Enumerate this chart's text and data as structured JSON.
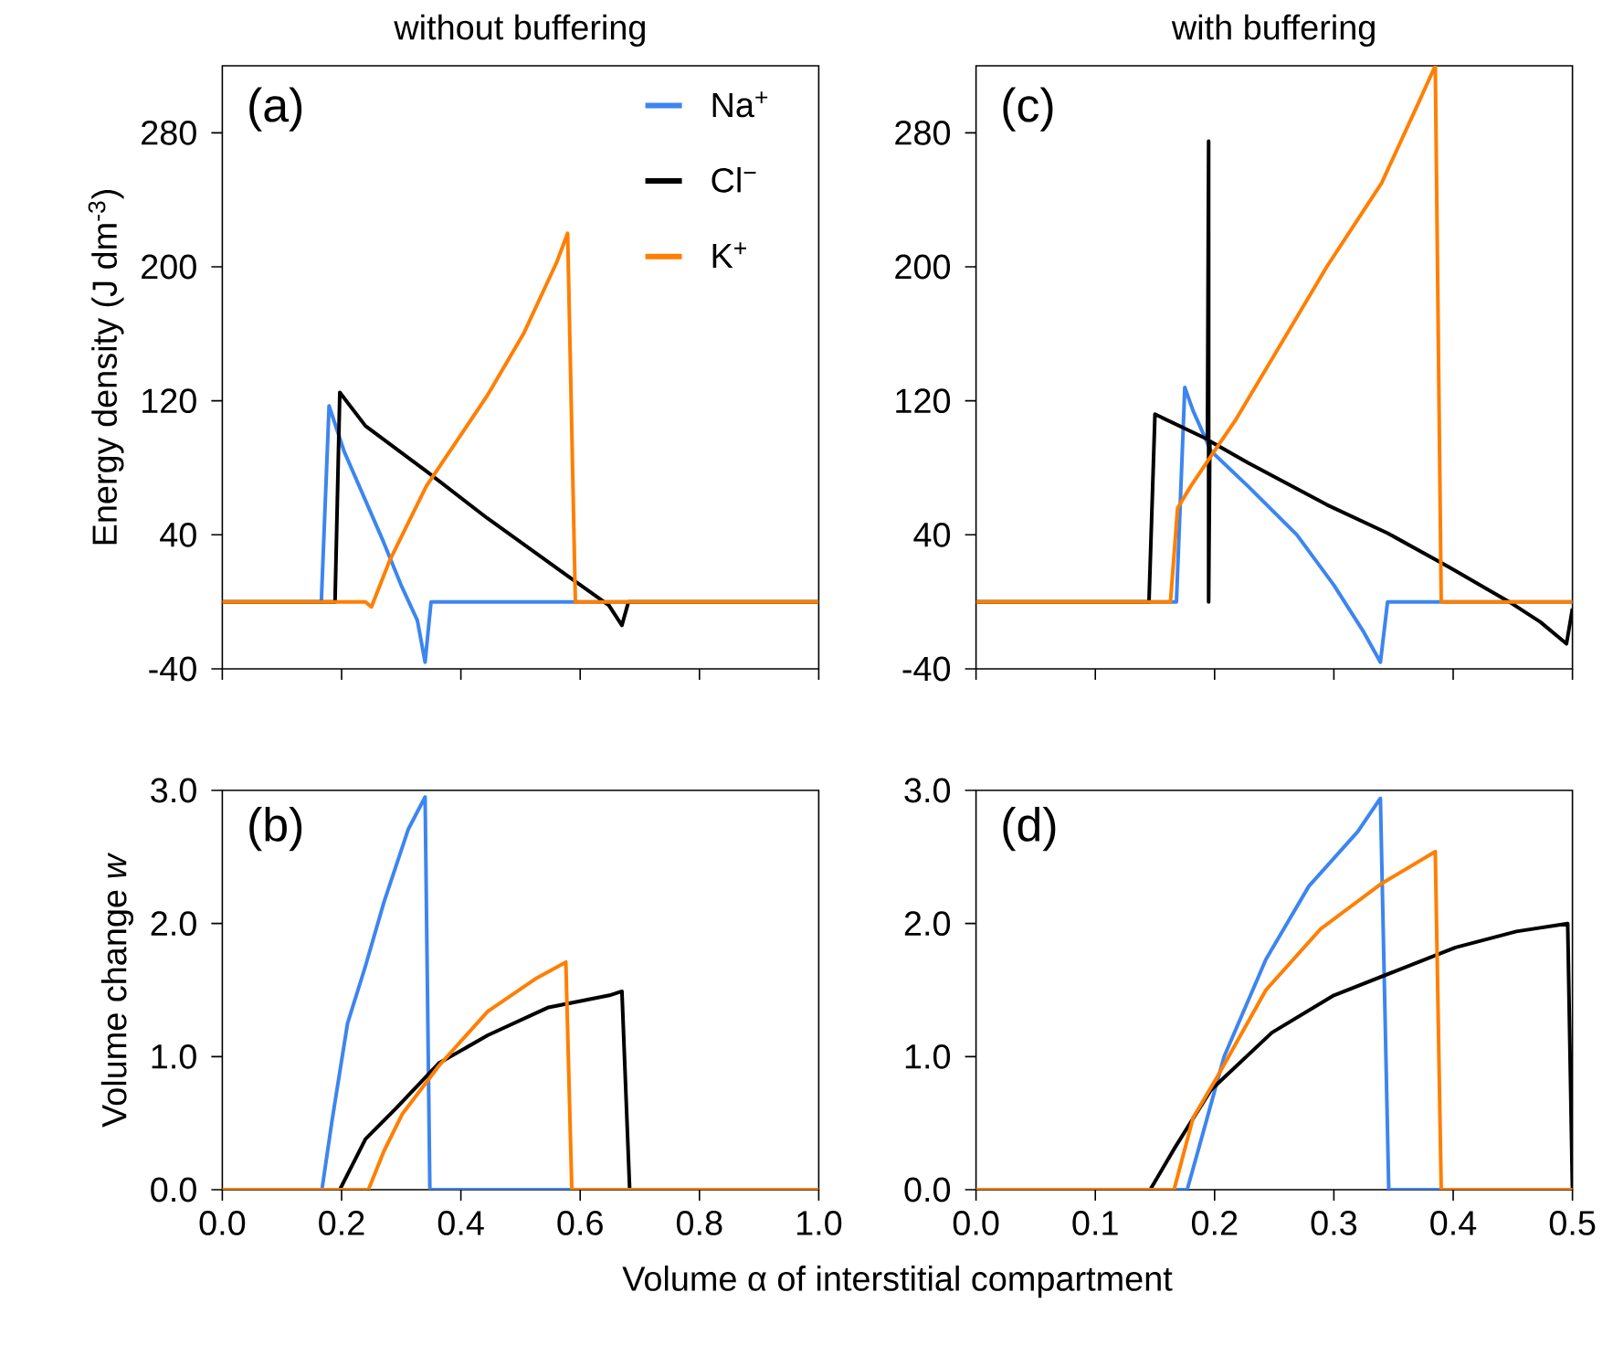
{
  "chart_data": [
    {
      "type": "line",
      "title": "without buffering",
      "ylabel": "Energy density (J dm$^{-3}$)",
      "annotations": [
        "(a)"
      ],
      "legend": "top right",
      "tick_labels": "y",
      "xlim": [
        0,
        1
      ],
      "ylim": [
        -40,
        320
      ],
      "xticks": [
        {
          "value": 0,
          "label": null
        },
        {
          "value": 0.2,
          "label": null
        },
        {
          "value": 0.4,
          "label": null
        },
        {
          "value": 0.6,
          "label": null
        },
        {
          "value": 0.8,
          "label": null
        },
        {
          "value": 1,
          "label": null
        }
      ],
      "yticks": [
        -40,
        40,
        120,
        200,
        280
      ],
      "series": [
        {
          "name": "Na$^{+}$",
          "color": "#3d85f0",
          "x": [
            0,
            0.166,
            0.179,
            0.204,
            0.27,
            0.301,
            0.327,
            0.34,
            0.35,
            1.0
          ],
          "values": [
            0,
            0,
            117,
            90,
            36,
            9,
            -11,
            -36,
            0,
            0
          ]
        },
        {
          "name": "Cl$^{−}$",
          "color": "#000000",
          "x": [
            0,
            0.189,
            0.197,
            0.24,
            0.342,
            0.444,
            0.577,
            0.648,
            0.67,
            0.681,
            1.0
          ],
          "values": [
            0,
            0,
            125,
            105,
            78,
            50,
            16,
            -2,
            -14,
            0,
            0
          ]
        },
        {
          "name": "K$^{+}$",
          "color": "#ff7f00",
          "x": [
            0,
            0.24,
            0.25,
            0.281,
            0.342,
            0.444,
            0.505,
            0.561,
            0.579,
            0.592,
            1.0
          ],
          "values": [
            0,
            0,
            -3,
            25,
            69,
            123,
            160,
            203,
            220,
            0,
            0
          ]
        }
      ]
    },
    {
      "type": "line",
      "title": "with buffering",
      "annotations": [
        "(c)"
      ],
      "tick_labels": "y",
      "xlim": [
        0,
        0.5
      ],
      "ylim": [
        -40,
        320
      ],
      "xticks": [
        {
          "value": 0,
          "label": null
        },
        {
          "value": 0.1,
          "label": null
        },
        {
          "value": 0.2,
          "label": null
        },
        {
          "value": 0.3,
          "label": null
        },
        {
          "value": 0.4,
          "label": null
        },
        {
          "value": 0.5,
          "label": null
        }
      ],
      "yticks": [
        -40,
        40,
        120,
        200,
        280
      ],
      "series": [
        {
          "color": "#3d85f0",
          "x": [
            0,
            0.168,
            0.175,
            0.182,
            0.197,
            0.228,
            0.269,
            0.3,
            0.325,
            0.339,
            0.345,
            0.5
          ],
          "values": [
            0,
            0,
            128,
            114,
            90,
            69,
            40,
            10,
            -18,
            -36,
            0,
            0
          ]
        },
        {
          "color": "#000000",
          "x": [
            0,
            0.145,
            0.15,
            0.194,
            0.195,
            0.195,
            0.196,
            0.228,
            0.294,
            0.345,
            0.396,
            0.447,
            0.473,
            0.495,
            0.5
          ],
          "values": [
            0,
            0,
            112,
            97,
            275,
            0,
            96,
            83,
            58,
            41,
            21,
            0,
            -12,
            -25,
            -4
          ]
        },
        {
          "color": "#ff7f00",
          "x": [
            0,
            0.163,
            0.169,
            0.18,
            0.197,
            0.218,
            0.259,
            0.294,
            0.34,
            0.371,
            0.385,
            0.39,
            0.5
          ],
          "values": [
            0,
            0,
            56,
            69,
            87,
            109,
            158,
            200,
            250,
            298,
            320,
            0,
            0
          ]
        }
      ]
    },
    {
      "type": "line",
      "ylabel": "Volume change *w*",
      "xlabel": "Volume α of interstitial compartment",
      "annotations": [
        "(b)"
      ],
      "xlim": [
        0,
        1
      ],
      "ylim": [
        0,
        3
      ],
      "xticks": [
        {
          "value": 0,
          "label": "0.0"
        },
        0.2,
        0.4,
        0.6,
        0.8,
        {
          "value": 1,
          "label": "1.0"
        }
      ],
      "yticks": [
        {
          "value": 0,
          "label": "0.0"
        },
        {
          "value": 1,
          "label": "1.0"
        },
        {
          "value": 2,
          "label": "2.0"
        },
        {
          "value": 3,
          "label": "3.0"
        }
      ],
      "series": [
        {
          "color": "#3d85f0",
          "x": [
            0,
            0.167,
            0.184,
            0.21,
            0.24,
            0.271,
            0.312,
            0.34,
            0.348,
            1.0
          ],
          "values": [
            0,
            0,
            0.52,
            1.25,
            1.68,
            2.16,
            2.71,
            2.95,
            0,
            0
          ]
        },
        {
          "color": "#000000",
          "x": [
            0,
            0.197,
            0.24,
            0.291,
            0.363,
            0.445,
            0.547,
            0.649,
            0.67,
            0.683,
            1.0
          ],
          "values": [
            0,
            0,
            0.38,
            0.61,
            0.95,
            1.16,
            1.37,
            1.46,
            1.49,
            0,
            0
          ]
        },
        {
          "color": "#ff7f00",
          "x": [
            0,
            0.245,
            0.271,
            0.302,
            0.363,
            0.445,
            0.527,
            0.576,
            0.586,
            1.0
          ],
          "values": [
            0,
            0,
            0.29,
            0.57,
            0.93,
            1.34,
            1.59,
            1.71,
            0,
            0
          ]
        }
      ]
    },
    {
      "type": "line",
      "annotations": [
        "(d)"
      ],
      "xlim": [
        0,
        0.5
      ],
      "ylim": [
        0,
        3
      ],
      "xticks": [
        {
          "value": 0,
          "label": "0.0"
        },
        0.1,
        0.2,
        0.3,
        0.4,
        0.5
      ],
      "yticks": [
        {
          "value": 0,
          "label": "0.0"
        },
        {
          "value": 1,
          "label": "1.0"
        },
        {
          "value": 2,
          "label": "2.0"
        },
        {
          "value": 3,
          "label": "3.0"
        }
      ],
      "series": [
        {
          "color": "#3d85f0",
          "x": [
            0,
            0.177,
            0.187,
            0.208,
            0.243,
            0.279,
            0.32,
            0.339,
            0.346,
            0.5
          ],
          "values": [
            0,
            0,
            0.32,
            1.0,
            1.73,
            2.28,
            2.69,
            2.94,
            0,
            0
          ]
        },
        {
          "color": "#000000",
          "x": [
            0,
            0.146,
            0.167,
            0.197,
            0.248,
            0.3,
            0.351,
            0.402,
            0.453,
            0.496,
            0.5
          ],
          "values": [
            0,
            0,
            0.32,
            0.75,
            1.18,
            1.46,
            1.64,
            1.82,
            1.94,
            2.0,
            0
          ]
        },
        {
          "color": "#ff7f00",
          "x": [
            0,
            0.166,
            0.182,
            0.203,
            0.243,
            0.289,
            0.34,
            0.385,
            0.39,
            0.5
          ],
          "values": [
            0,
            0,
            0.54,
            0.86,
            1.5,
            1.96,
            2.3,
            2.54,
            0,
            0
          ]
        }
      ]
    }
  ]
}
